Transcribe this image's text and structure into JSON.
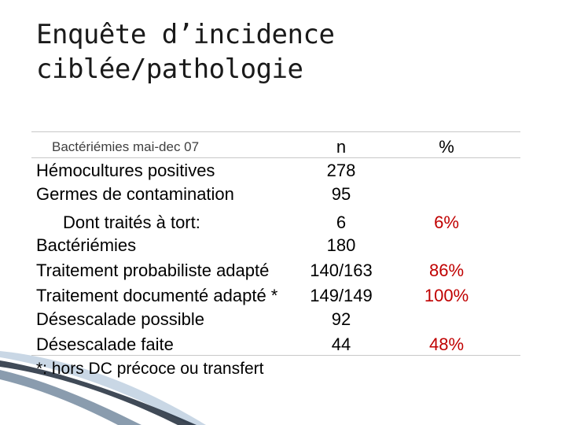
{
  "title": {
    "line1": "Enquête d’incidence",
    "line2": "ciblée/pathologie"
  },
  "table": {
    "header": {
      "label": "Bactériémies mai-dec 07",
      "n": "n",
      "pct": "%"
    },
    "rows": [
      {
        "label": "Hémocultures positives",
        "n": "278",
        "pct": ""
      },
      {
        "label": "Germes de contamination",
        "n": "95",
        "pct": ""
      },
      {
        "label": "Dont traités à tort:",
        "n": "6",
        "pct": "6%"
      },
      {
        "label": "Bactériémies",
        "n": "180",
        "pct": ""
      },
      {
        "label": "Traitement probabiliste adapté",
        "n": "140/163",
        "pct": "86%"
      },
      {
        "label": "Traitement documenté adapté *",
        "n": "149/149",
        "pct": "100%"
      },
      {
        "label": "Désescalade possible",
        "n": "92",
        "pct": ""
      },
      {
        "label": "Désescalade faite",
        "n": "44",
        "pct": "48%"
      }
    ],
    "footnote": "*: hors DC précoce ou transfert"
  },
  "colors": {
    "percent_text": "#c00000",
    "rule": "#c8c8c8",
    "decoration_dark": "#1f2a3a",
    "decoration_light": "#9db7cf"
  }
}
